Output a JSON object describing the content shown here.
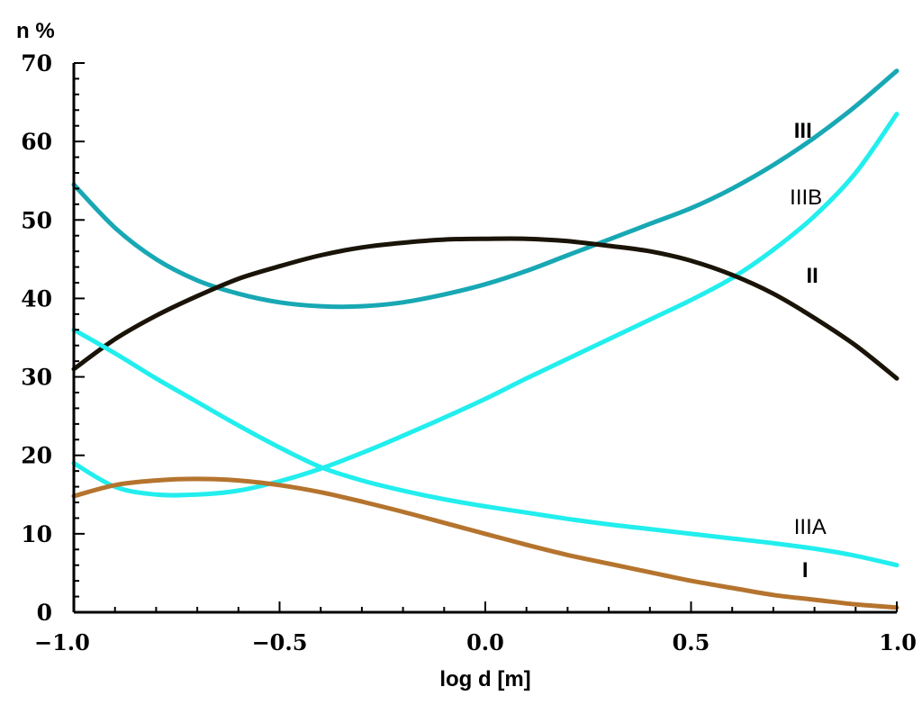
{
  "chart_data": {
    "type": "line",
    "xlabel": "log d [m]",
    "ylabel": "n %",
    "xlim": [
      -1.0,
      1.0
    ],
    "ylim": [
      0,
      70
    ],
    "x_ticks": [
      "−1.0",
      "−0.5",
      "0.0",
      "0.5",
      "1.0"
    ],
    "y_ticks": [
      "0",
      "10",
      "20",
      "30",
      "40",
      "50",
      "60",
      "70"
    ],
    "grid": false,
    "series": [
      {
        "name": "III",
        "color": "#18a8b4",
        "label_x": 0.75,
        "label_y": 60.5,
        "label_bold": true,
        "x": [
          -1.0,
          -0.9,
          -0.8,
          -0.7,
          -0.6,
          -0.5,
          -0.4,
          -0.3,
          -0.2,
          -0.1,
          0.0,
          0.1,
          0.2,
          0.3,
          0.4,
          0.5,
          0.6,
          0.7,
          0.8,
          0.9,
          1.0
        ],
        "y": [
          54.5,
          49.0,
          45.0,
          42.3,
          40.6,
          39.5,
          39.0,
          39.0,
          39.5,
          40.5,
          41.8,
          43.5,
          45.5,
          47.5,
          49.5,
          51.5,
          54.0,
          57.0,
          60.5,
          64.5,
          69.0
        ]
      },
      {
        "name": "IIIB",
        "color": "#22eeee",
        "label_x": 0.74,
        "label_y": 52.0,
        "label_bold": false,
        "x": [
          -1.0,
          -0.9,
          -0.8,
          -0.7,
          -0.6,
          -0.5,
          -0.4,
          -0.3,
          -0.2,
          -0.1,
          0.0,
          0.1,
          0.2,
          0.3,
          0.4,
          0.5,
          0.6,
          0.7,
          0.8,
          0.9,
          1.0
        ],
        "y": [
          19.0,
          16.0,
          15.0,
          15.0,
          15.5,
          16.7,
          18.3,
          20.3,
          22.5,
          24.8,
          27.2,
          29.8,
          32.3,
          34.8,
          37.3,
          39.8,
          42.6,
          46.2,
          50.5,
          56.0,
          63.5
        ]
      },
      {
        "name": "II",
        "color": "#1a1408",
        "label_x": 0.78,
        "label_y": 42.0,
        "label_bold": true,
        "x": [
          -1.0,
          -0.9,
          -0.8,
          -0.7,
          -0.6,
          -0.5,
          -0.4,
          -0.3,
          -0.2,
          -0.1,
          0.0,
          0.1,
          0.2,
          0.3,
          0.4,
          0.5,
          0.6,
          0.7,
          0.8,
          0.9,
          1.0
        ],
        "y": [
          31.0,
          34.8,
          37.8,
          40.3,
          42.5,
          44.1,
          45.5,
          46.5,
          47.1,
          47.5,
          47.6,
          47.6,
          47.3,
          46.7,
          46.0,
          44.8,
          43.0,
          40.6,
          37.5,
          34.0,
          29.8
        ]
      },
      {
        "name": "IIIA",
        "color": "#22eeee",
        "label_x": 0.75,
        "label_y": 10.0,
        "label_bold": false,
        "x": [
          -1.0,
          -0.9,
          -0.8,
          -0.7,
          -0.6,
          -0.5,
          -0.4,
          -0.3,
          -0.2,
          -0.1,
          0.0,
          0.1,
          0.2,
          0.3,
          0.4,
          0.5,
          0.6,
          0.7,
          0.8,
          0.9,
          1.0
        ],
        "y": [
          36.0,
          33.0,
          29.8,
          26.8,
          23.8,
          21.0,
          18.5,
          16.8,
          15.5,
          14.4,
          13.5,
          12.7,
          11.9,
          11.2,
          10.6,
          10.0,
          9.4,
          8.8,
          8.1,
          7.2,
          6.0
        ]
      },
      {
        "name": "I",
        "color": "#b5742e",
        "label_x": 0.77,
        "label_y": 4.5,
        "label_bold": true,
        "x": [
          -1.0,
          -0.9,
          -0.8,
          -0.7,
          -0.6,
          -0.5,
          -0.4,
          -0.3,
          -0.2,
          -0.1,
          0.0,
          0.1,
          0.2,
          0.3,
          0.4,
          0.5,
          0.6,
          0.7,
          0.8,
          0.9,
          1.0
        ],
        "y": [
          14.8,
          16.2,
          16.8,
          17.0,
          16.8,
          16.2,
          15.3,
          14.1,
          12.8,
          11.4,
          10.0,
          8.6,
          7.3,
          6.2,
          5.1,
          4.0,
          3.1,
          2.2,
          1.6,
          1.0,
          0.6
        ]
      }
    ]
  }
}
